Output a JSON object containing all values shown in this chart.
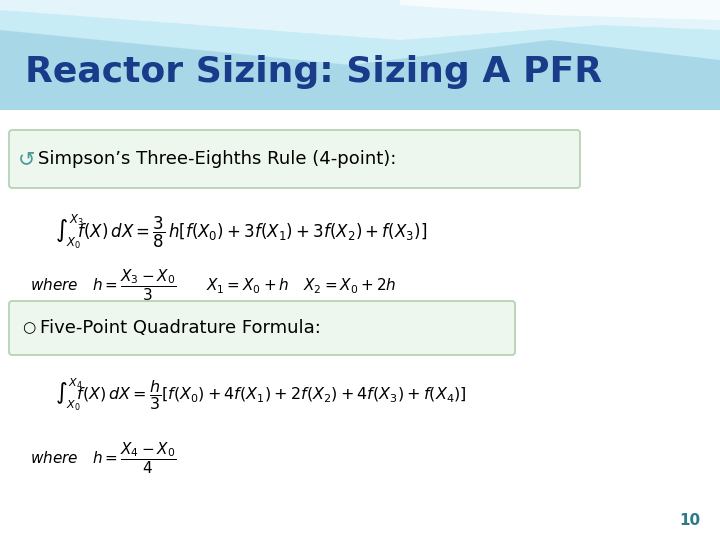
{
  "title": "Reactor Sizing: Sizing A PFR",
  "title_color": "#1a3a8a",
  "title_fontsize": 26,
  "bg_color": "#f8f8f8",
  "box_bg": "#e8f5e8",
  "box_border": "#a0c8a0",
  "slide_number": "10",
  "slide_num_color": "#2a7a8a"
}
